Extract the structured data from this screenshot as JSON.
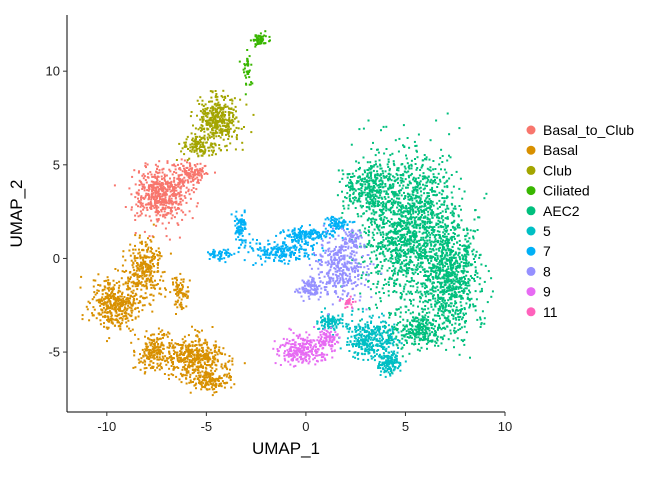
{
  "chart_data": {
    "type": "scatter",
    "xlabel": "UMAP_1",
    "ylabel": "UMAP_2",
    "xlim": [
      -12,
      10
    ],
    "ylim": [
      -8.2,
      13
    ],
    "x_ticks": [
      -10,
      -5,
      0,
      5,
      10
    ],
    "y_ticks": [
      -5,
      0,
      5,
      10
    ],
    "x_tick_labels": [
      "-10",
      "-5",
      "0",
      "5",
      "10"
    ],
    "y_tick_labels": [
      "-5",
      "0",
      "5",
      "10"
    ],
    "grid": false,
    "legend_position": "right",
    "series": [
      {
        "name": "Basal_to_Club",
        "color": "#F8766D",
        "clusters": [
          {
            "cx": -7.3,
            "cy": 3.4,
            "rx": 1.2,
            "ry": 1.3,
            "n": 520
          },
          {
            "cx": -5.8,
            "cy": 4.6,
            "rx": 0.7,
            "ry": 0.6,
            "n": 130
          }
        ]
      },
      {
        "name": "Basal",
        "color": "#D89000",
        "clusters": [
          {
            "cx": -9.6,
            "cy": -2.5,
            "rx": 1.1,
            "ry": 1.2,
            "n": 380
          },
          {
            "cx": -8.1,
            "cy": -0.6,
            "rx": 0.9,
            "ry": 1.4,
            "n": 300
          },
          {
            "cx": -5.6,
            "cy": -5.3,
            "rx": 1.3,
            "ry": 0.9,
            "n": 420
          },
          {
            "cx": -7.6,
            "cy": -5.0,
            "rx": 0.9,
            "ry": 0.8,
            "n": 200
          },
          {
            "cx": -4.8,
            "cy": -6.5,
            "rx": 0.9,
            "ry": 0.5,
            "n": 150
          },
          {
            "cx": -6.3,
            "cy": -1.8,
            "rx": 0.4,
            "ry": 0.8,
            "n": 80
          }
        ]
      },
      {
        "name": "Club",
        "color": "#A3A500",
        "clusters": [
          {
            "cx": -4.4,
            "cy": 7.4,
            "rx": 1.0,
            "ry": 1.2,
            "n": 380
          },
          {
            "cx": -5.4,
            "cy": 6.0,
            "rx": 0.7,
            "ry": 0.6,
            "n": 110
          }
        ]
      },
      {
        "name": "Ciliated",
        "color": "#39B600",
        "clusters": [
          {
            "cx": -2.3,
            "cy": 11.7,
            "rx": 0.35,
            "ry": 0.3,
            "n": 60
          },
          {
            "cx": -2.9,
            "cy": 10.0,
            "rx": 0.25,
            "ry": 0.8,
            "n": 40
          }
        ]
      },
      {
        "name": "AEC2",
        "color": "#00BF7D",
        "clusters": [
          {
            "cx": 5.2,
            "cy": 1.5,
            "rx": 2.2,
            "ry": 3.7,
            "n": 1600
          },
          {
            "cx": 7.3,
            "cy": -1.0,
            "rx": 1.3,
            "ry": 2.6,
            "n": 700
          },
          {
            "cx": 3.2,
            "cy": 3.8,
            "rx": 1.2,
            "ry": 1.2,
            "n": 300
          },
          {
            "cx": 5.8,
            "cy": -3.8,
            "rx": 1.4,
            "ry": 0.9,
            "n": 300
          }
        ]
      },
      {
        "name": "5",
        "color": "#00BFC4",
        "clusters": [
          {
            "cx": 3.3,
            "cy": -4.3,
            "rx": 1.2,
            "ry": 1.0,
            "n": 330
          },
          {
            "cx": 4.2,
            "cy": -5.6,
            "rx": 0.5,
            "ry": 0.5,
            "n": 140
          },
          {
            "cx": 1.2,
            "cy": -3.4,
            "rx": 0.6,
            "ry": 0.4,
            "n": 100
          }
        ]
      },
      {
        "name": "7",
        "color": "#00B0F6",
        "clusters": [
          {
            "cx": -1.2,
            "cy": 0.4,
            "rx": 1.6,
            "ry": 0.5,
            "n": 200
          },
          {
            "cx": 0.0,
            "cy": 1.3,
            "rx": 1.2,
            "ry": 0.3,
            "n": 150
          },
          {
            "cx": -3.3,
            "cy": 1.6,
            "rx": 0.3,
            "ry": 0.8,
            "n": 80
          },
          {
            "cx": -4.3,
            "cy": 0.2,
            "rx": 0.5,
            "ry": 0.3,
            "n": 50
          },
          {
            "cx": 1.6,
            "cy": 1.9,
            "rx": 0.6,
            "ry": 0.3,
            "n": 70
          }
        ]
      },
      {
        "name": "8",
        "color": "#9590FF",
        "clusters": [
          {
            "cx": 1.8,
            "cy": -0.5,
            "rx": 1.1,
            "ry": 1.6,
            "n": 350
          },
          {
            "cx": 0.2,
            "cy": -1.6,
            "rx": 0.6,
            "ry": 0.5,
            "n": 100
          },
          {
            "cx": 2.3,
            "cy": 1.0,
            "rx": 0.4,
            "ry": 0.6,
            "n": 60
          }
        ]
      },
      {
        "name": "9",
        "color": "#E76BF3",
        "clusters": [
          {
            "cx": -0.2,
            "cy": -4.9,
            "rx": 1.0,
            "ry": 0.7,
            "n": 250
          },
          {
            "cx": 1.1,
            "cy": -4.4,
            "rx": 0.5,
            "ry": 0.5,
            "n": 90
          }
        ]
      },
      {
        "name": "11",
        "color": "#FF62BC",
        "clusters": [
          {
            "cx": 2.2,
            "cy": -2.4,
            "rx": 0.3,
            "ry": 0.3,
            "n": 20
          }
        ]
      }
    ]
  }
}
